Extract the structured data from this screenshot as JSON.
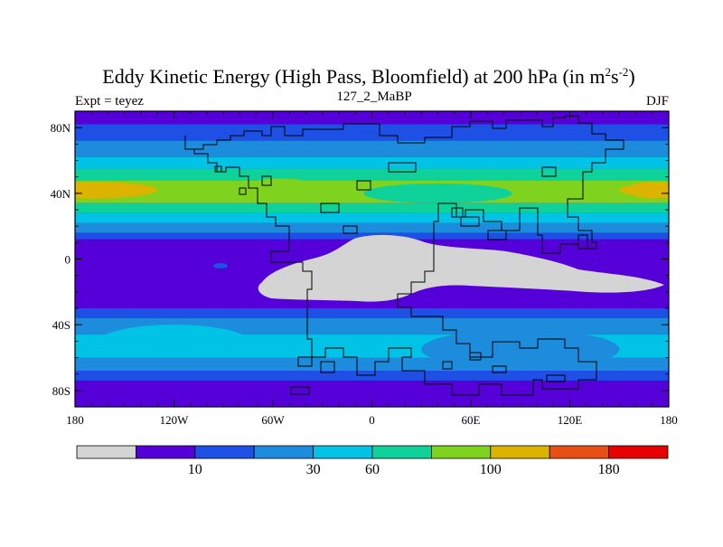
{
  "title": {
    "main": "Eddy Kinetic Energy (High Pass, Bloomfield) at 200 hPa (in m",
    "unit_base": "s",
    "sup1": "2",
    "sup2": "-2",
    "close": ")"
  },
  "subtitle": {
    "left": "Expt = teyez",
    "center": "127_2_MaBP",
    "right": "DJF"
  },
  "map": {
    "projection": "cylindrical-equidistant",
    "lon_range": [
      -180,
      180
    ],
    "lat_range": [
      -90,
      90
    ],
    "x_ticks": [
      {
        "lon": -180,
        "label": "180"
      },
      {
        "lon": -120,
        "label": "120W"
      },
      {
        "lon": -60,
        "label": "60W"
      },
      {
        "lon": 0,
        "label": "0"
      },
      {
        "lon": 60,
        "label": "60E"
      },
      {
        "lon": 120,
        "label": "120E"
      },
      {
        "lon": 180,
        "label": "180"
      }
    ],
    "y_ticks": [
      {
        "lat": 80,
        "label": "80N"
      },
      {
        "lat": 40,
        "label": "40N"
      },
      {
        "lat": 0,
        "label": "0"
      },
      {
        "lat": -40,
        "label": "40S"
      },
      {
        "lat": -80,
        "label": "80S"
      }
    ],
    "colors": {
      "background_band": "#5500d8",
      "missing_land": "#d4d4d4"
    }
  },
  "colorbar": {
    "colors": [
      "#d4d4d4",
      "#5500d8",
      "#1e50e6",
      "#1e8cdc",
      "#00c3e6",
      "#0fd29b",
      "#7fd21e",
      "#dcb400",
      "#e65014",
      "#e60000"
    ],
    "labels": [
      {
        "boundary": 2,
        "text": "10"
      },
      {
        "boundary": 4,
        "text": "30"
      },
      {
        "boundary": 5,
        "text": "60"
      },
      {
        "boundary": 7,
        "text": "100"
      },
      {
        "boundary": 9,
        "text": "180"
      }
    ]
  },
  "field_bands": [
    {
      "lat_top": 90,
      "lat_bottom": 82,
      "level": 1
    },
    {
      "lat_top": 82,
      "lat_bottom": 72,
      "level": 2
    },
    {
      "lat_top": 72,
      "lat_bottom": 62,
      "level": 3
    },
    {
      "lat_top": 62,
      "lat_bottom": 55,
      "level": 4
    },
    {
      "lat_top": 55,
      "lat_bottom": 48,
      "level": 5
    },
    {
      "lat_top": 48,
      "lat_bottom": 34,
      "level": 6
    },
    {
      "lat_top": 34,
      "lat_bottom": 28,
      "level": 5
    },
    {
      "lat_top": 28,
      "lat_bottom": 22,
      "level": 4
    },
    {
      "lat_top": 22,
      "lat_bottom": 16,
      "level": 3
    },
    {
      "lat_top": 16,
      "lat_bottom": 12,
      "level": 2
    },
    {
      "lat_top": 12,
      "lat_bottom": -30,
      "level": 1
    },
    {
      "lat_top": -30,
      "lat_bottom": -36,
      "level": 2
    },
    {
      "lat_top": -36,
      "lat_bottom": -46,
      "level": 3
    },
    {
      "lat_top": -46,
      "lat_bottom": -60,
      "level": 4
    },
    {
      "lat_top": -60,
      "lat_bottom": -68,
      "level": 3
    },
    {
      "lat_top": -68,
      "lat_bottom": -74,
      "level": 2
    },
    {
      "lat_top": -74,
      "lat_bottom": -90,
      "level": 1
    }
  ],
  "field_blobs": [
    {
      "name": "npacific-max",
      "lon": -170,
      "lat": 42,
      "rlon": 40,
      "rlat": 5,
      "level": 7
    },
    {
      "name": "natlantic-max",
      "lon": -55,
      "lat": 43,
      "rlon": 25,
      "rlat": 6,
      "level": 6
    },
    {
      "name": "asia-jet",
      "lon": 40,
      "lat": 40,
      "rlon": 45,
      "rlat": 6,
      "level": 5
    },
    {
      "name": "npacific-east-max",
      "lon": 170,
      "lat": 42,
      "rlon": 15,
      "rlat": 5,
      "level": 7
    },
    {
      "name": "sh-storm-indian",
      "lon": 90,
      "lat": -55,
      "rlon": 60,
      "rlat": 12,
      "level": 3
    },
    {
      "name": "sh-storm-pacific",
      "lon": -120,
      "lat": -50,
      "rlon": 45,
      "rlat": 10,
      "level": 4
    }
  ],
  "missing_region": {
    "name": "tropical-missing-zone"
  },
  "coastline": {
    "name": "pangaea-coastline"
  }
}
